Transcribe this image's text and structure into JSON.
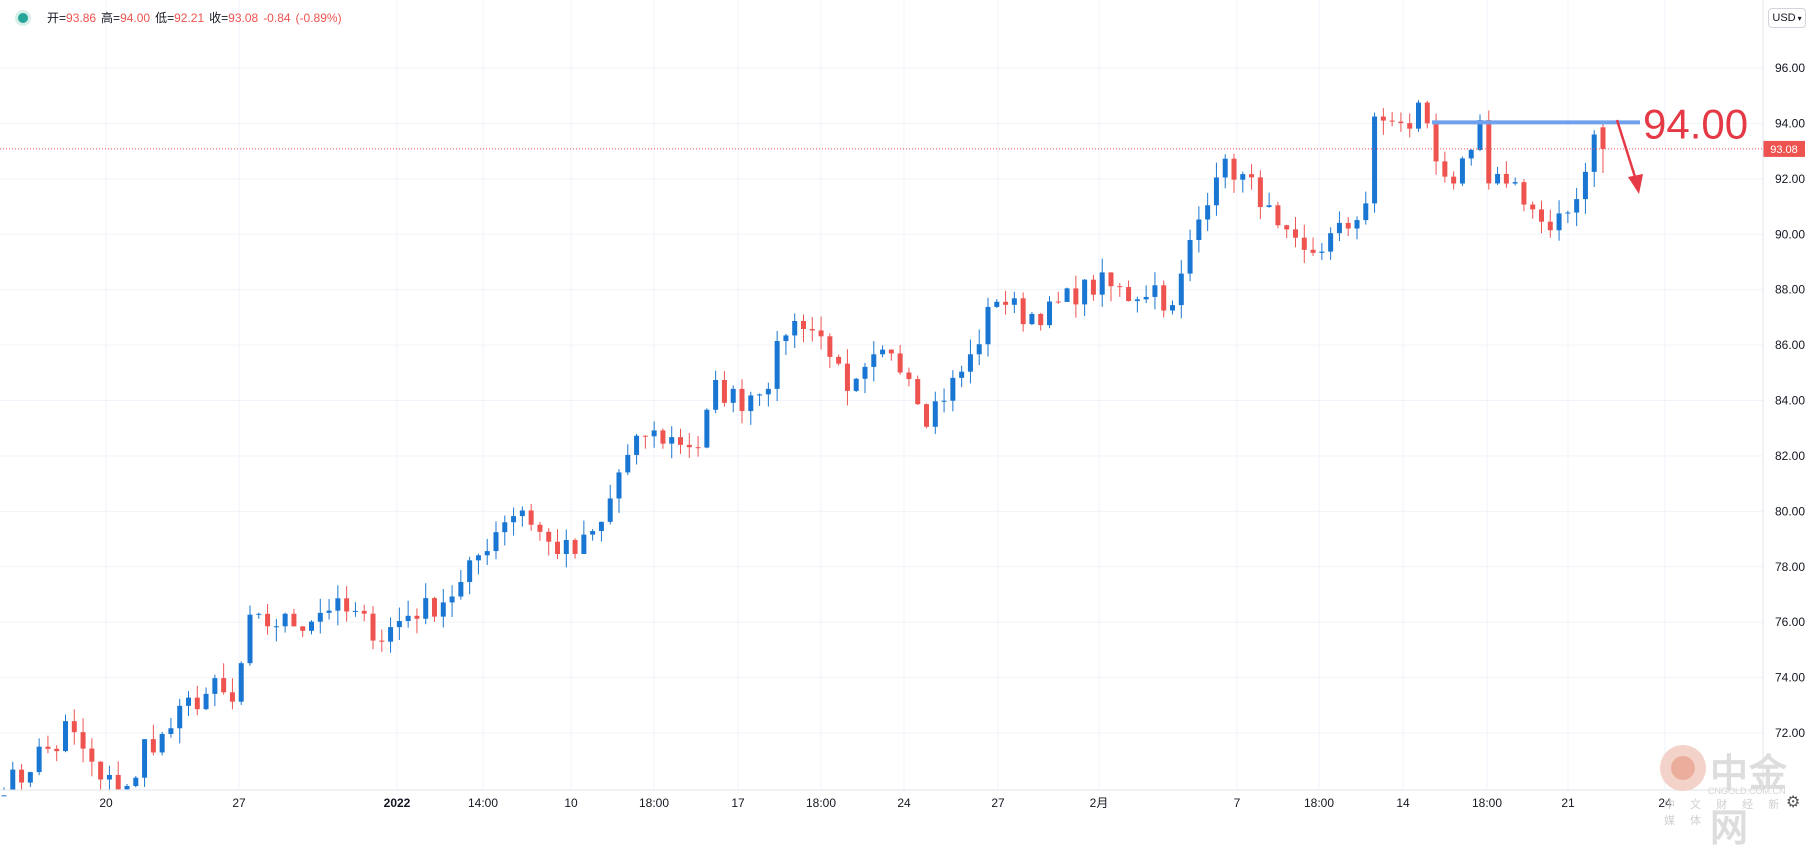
{
  "header": {
    "open_label": "开=",
    "open": "93.86",
    "high_label": "高=",
    "high": "94.00",
    "low_label": "低=",
    "low": "92.21",
    "close_label": "收=",
    "close": "93.08",
    "change": "-0.84",
    "change_pct": "(-0.89%)"
  },
  "currency": "USD",
  "watermark": {
    "title": "中金网",
    "url": "CNGOLD.COM.CN",
    "sub": "中 文 财 经 新 媒 体"
  },
  "colors": {
    "up": "#1976d2",
    "down": "#ef5350",
    "level": "#6fa1ec",
    "annotation": "#e53945",
    "grid": "#f0f3fa"
  },
  "chart_data": {
    "type": "candlestick",
    "ylim": [
      70.2,
      97.8
    ],
    "y_ticks": [
      "96.00",
      "94.00",
      "92.00",
      "90.00",
      "88.00",
      "86.00",
      "84.00",
      "82.00",
      "80.00",
      "78.00",
      "76.00",
      "74.00",
      "72.00"
    ],
    "x_labels": [
      "20",
      "27",
      "2022",
      "14:00",
      "10",
      "18:00",
      "17",
      "18:00",
      "24",
      "27",
      "2月",
      "7",
      "18:00",
      "14",
      "18:00",
      "21",
      "24"
    ],
    "last_price": "93.08",
    "resistance": {
      "value": 94.0,
      "label": "94.00"
    },
    "anchors": [
      [
        0,
        70.2
      ],
      [
        2,
        70.4
      ],
      [
        4,
        71.3
      ],
      [
        6,
        71.5
      ],
      [
        7,
        72.2
      ],
      [
        9,
        71.4
      ],
      [
        11,
        70.2
      ],
      [
        15,
        70.2
      ],
      [
        16,
        71.6
      ],
      [
        18,
        71.8
      ],
      [
        21,
        73.0
      ],
      [
        24,
        73.6
      ],
      [
        26,
        73.0
      ],
      [
        28,
        75.9
      ],
      [
        31,
        76.0
      ],
      [
        34,
        76.0
      ],
      [
        37,
        76.6
      ],
      [
        40,
        76.2
      ],
      [
        43,
        75.5
      ],
      [
        46,
        76.3
      ],
      [
        49,
        76.6
      ],
      [
        52,
        77.3
      ],
      [
        54,
        78.4
      ],
      [
        57,
        79.8
      ],
      [
        59,
        80.1
      ],
      [
        62,
        78.8
      ],
      [
        65,
        78.5
      ],
      [
        68,
        79.5
      ],
      [
        70,
        81.4
      ],
      [
        73,
        82.8
      ],
      [
        76,
        82.6
      ],
      [
        79,
        82.4
      ],
      [
        81,
        84.4
      ],
      [
        84,
        84.0
      ],
      [
        87,
        84.8
      ],
      [
        89,
        86.6
      ],
      [
        91,
        86.9
      ],
      [
        94,
        85.9
      ],
      [
        96,
        84.0
      ],
      [
        99,
        85.3
      ],
      [
        101,
        85.9
      ],
      [
        103,
        85.0
      ],
      [
        105,
        83.5
      ],
      [
        108,
        84.6
      ],
      [
        110,
        85.5
      ],
      [
        113,
        87.8
      ],
      [
        116,
        87.1
      ],
      [
        119,
        87.2
      ],
      [
        122,
        87.9
      ],
      [
        125,
        88.2
      ],
      [
        128,
        87.8
      ],
      [
        131,
        88.1
      ],
      [
        133,
        87.2
      ],
      [
        135,
        89.6
      ],
      [
        138,
        92.4
      ],
      [
        140,
        92.3
      ],
      [
        143,
        91.4
      ],
      [
        145,
        90.0
      ],
      [
        148,
        89.2
      ],
      [
        150,
        89.6
      ],
      [
        153,
        90.3
      ],
      [
        155,
        91.2
      ],
      [
        156,
        93.9
      ],
      [
        158,
        94.2
      ],
      [
        160,
        93.6
      ],
      [
        161,
        94.9
      ],
      [
        163,
        92.7
      ],
      [
        165,
        92.0
      ],
      [
        167,
        92.6
      ],
      [
        168,
        94.0
      ],
      [
        169,
        91.5
      ],
      [
        171,
        92.1
      ],
      [
        173,
        91.4
      ],
      [
        175,
        90.4
      ],
      [
        176,
        89.9
      ],
      [
        178,
        90.8
      ],
      [
        180,
        92.3
      ],
      [
        181,
        93.9
      ],
      [
        182,
        93.4
      ]
    ],
    "last": {
      "o": 93.86,
      "h": 94.0,
      "l": 92.21,
      "c": 93.08
    }
  }
}
